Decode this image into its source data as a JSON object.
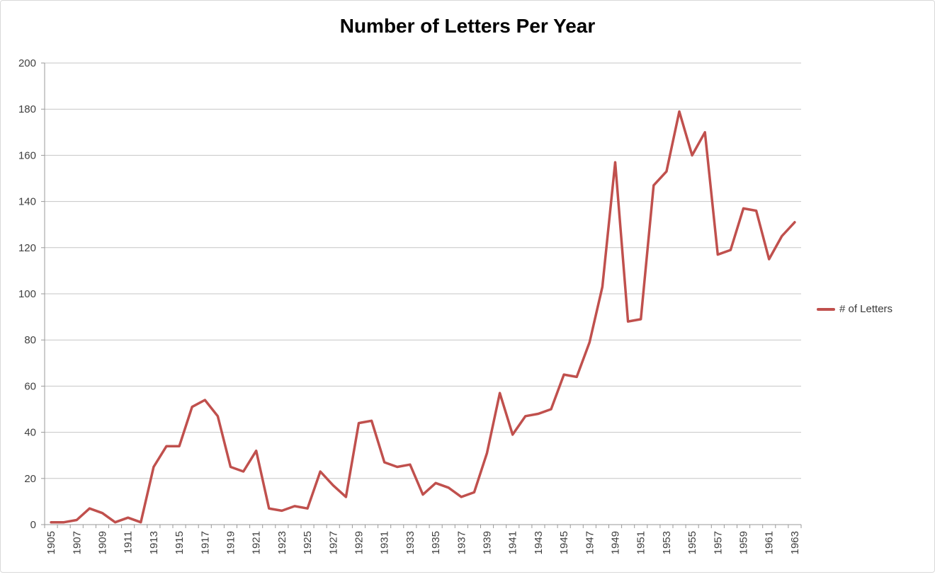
{
  "chart_data": {
    "type": "line",
    "title": "Number of Letters Per Year",
    "x": [
      1905,
      1906,
      1907,
      1908,
      1909,
      1910,
      1911,
      1912,
      1913,
      1914,
      1915,
      1916,
      1917,
      1918,
      1919,
      1920,
      1921,
      1922,
      1923,
      1924,
      1925,
      1926,
      1927,
      1928,
      1929,
      1930,
      1931,
      1932,
      1933,
      1934,
      1935,
      1936,
      1937,
      1938,
      1939,
      1940,
      1941,
      1942,
      1943,
      1944,
      1945,
      1946,
      1947,
      1948,
      1949,
      1950,
      1951,
      1952,
      1953,
      1954,
      1955,
      1956,
      1957,
      1958,
      1959,
      1960,
      1961,
      1962,
      1963
    ],
    "series": [
      {
        "name": "# of Letters",
        "color": "#C0504D",
        "values": [
          1,
          1,
          2,
          7,
          5,
          1,
          3,
          1,
          25,
          34,
          34,
          51,
          54,
          47,
          25,
          23,
          32,
          7,
          6,
          8,
          7,
          23,
          17,
          12,
          44,
          45,
          27,
          25,
          26,
          13,
          18,
          16,
          12,
          14,
          31,
          57,
          39,
          47,
          48,
          50,
          65,
          64,
          79,
          103,
          157,
          88,
          89,
          147,
          153,
          179,
          160,
          170,
          117,
          119,
          137,
          136,
          115,
          125,
          131
        ]
      }
    ],
    "ylim": [
      0,
      200
    ],
    "ytick_step": 20,
    "y_ticks": [
      0,
      20,
      40,
      60,
      80,
      100,
      120,
      140,
      160,
      180,
      200
    ],
    "xlabel_every": 2,
    "x_tick_labels": [
      1905,
      1907,
      1909,
      1911,
      1913,
      1915,
      1917,
      1919,
      1921,
      1923,
      1925,
      1927,
      1929,
      1931,
      1933,
      1935,
      1937,
      1939,
      1941,
      1943,
      1945,
      1947,
      1949,
      1951,
      1953,
      1955,
      1957,
      1959,
      1961,
      1963
    ],
    "grid": "horizontal",
    "legend_position": "right",
    "xlabel": "",
    "ylabel": ""
  },
  "colors": {
    "line": "#C0504D",
    "grid": "#C6C6C6",
    "axis": "#9A9A9A",
    "tick_label": "#404040",
    "title": "#000000",
    "background": "#FFFFFF",
    "frame_border": "#D9D9D9"
  }
}
